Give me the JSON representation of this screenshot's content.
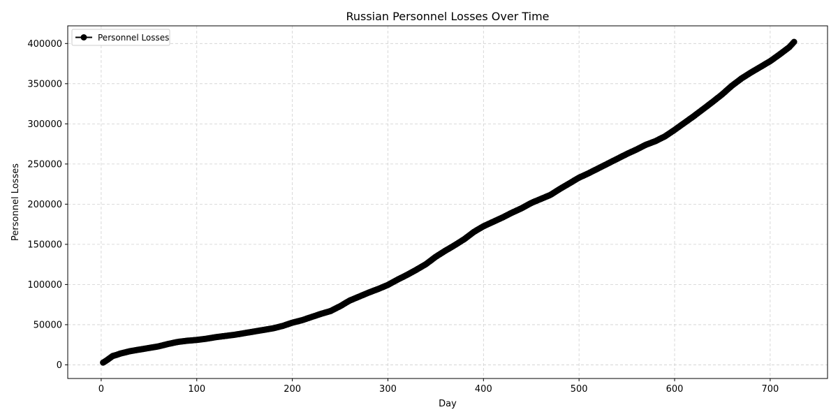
{
  "chart_data": {
    "type": "line",
    "title": "Russian Personnel Losses Over Time",
    "xlabel": "Day",
    "ylabel": "Personnel Losses",
    "xlim": [
      -35,
      760
    ],
    "ylim": [
      -17000,
      422000
    ],
    "xticks": [
      0,
      100,
      200,
      300,
      400,
      500,
      600,
      700
    ],
    "yticks": [
      0,
      50000,
      100000,
      150000,
      200000,
      250000,
      300000,
      350000,
      400000
    ],
    "grid": true,
    "legend_position": "top-left",
    "colors": {
      "series": "#000000",
      "grid": "#cfcfcf"
    },
    "series": [
      {
        "name": "Personnel Losses",
        "marker": "circle",
        "anchors": {
          "x": [
            2,
            5,
            8,
            12,
            15,
            20,
            25,
            30,
            40,
            50,
            60,
            70,
            80,
            90,
            100,
            110,
            120,
            130,
            140,
            150,
            160,
            170,
            180,
            190,
            200,
            210,
            220,
            230,
            240,
            250,
            260,
            270,
            280,
            290,
            300,
            310,
            320,
            330,
            340,
            350,
            360,
            370,
            380,
            390,
            400,
            410,
            420,
            430,
            440,
            450,
            460,
            470,
            480,
            490,
            500,
            510,
            520,
            530,
            540,
            550,
            560,
            570,
            580,
            590,
            600,
            610,
            620,
            630,
            640,
            650,
            660,
            670,
            680,
            690,
            700,
            710,
            720,
            725
          ],
          "y": [
            2800,
            5000,
            7500,
            11000,
            12000,
            14000,
            15500,
            17000,
            19000,
            21000,
            23000,
            26000,
            28500,
            30000,
            31000,
            32500,
            34500,
            36000,
            37500,
            39500,
            41500,
            43500,
            45500,
            48500,
            52500,
            55500,
            59500,
            63500,
            67000,
            73000,
            80000,
            85000,
            90000,
            94500,
            99500,
            106000,
            112000,
            118500,
            125500,
            134500,
            142000,
            149000,
            156500,
            165500,
            172500,
            178000,
            183500,
            189500,
            195000,
            201500,
            206500,
            211500,
            219000,
            226000,
            233000,
            238500,
            244500,
            250500,
            256500,
            262500,
            268000,
            274000,
            278500,
            284500,
            292500,
            301000,
            309500,
            318500,
            327500,
            337000,
            347500,
            356500,
            364000,
            371000,
            378000,
            386500,
            395500,
            402000
          ]
        }
      }
    ]
  }
}
